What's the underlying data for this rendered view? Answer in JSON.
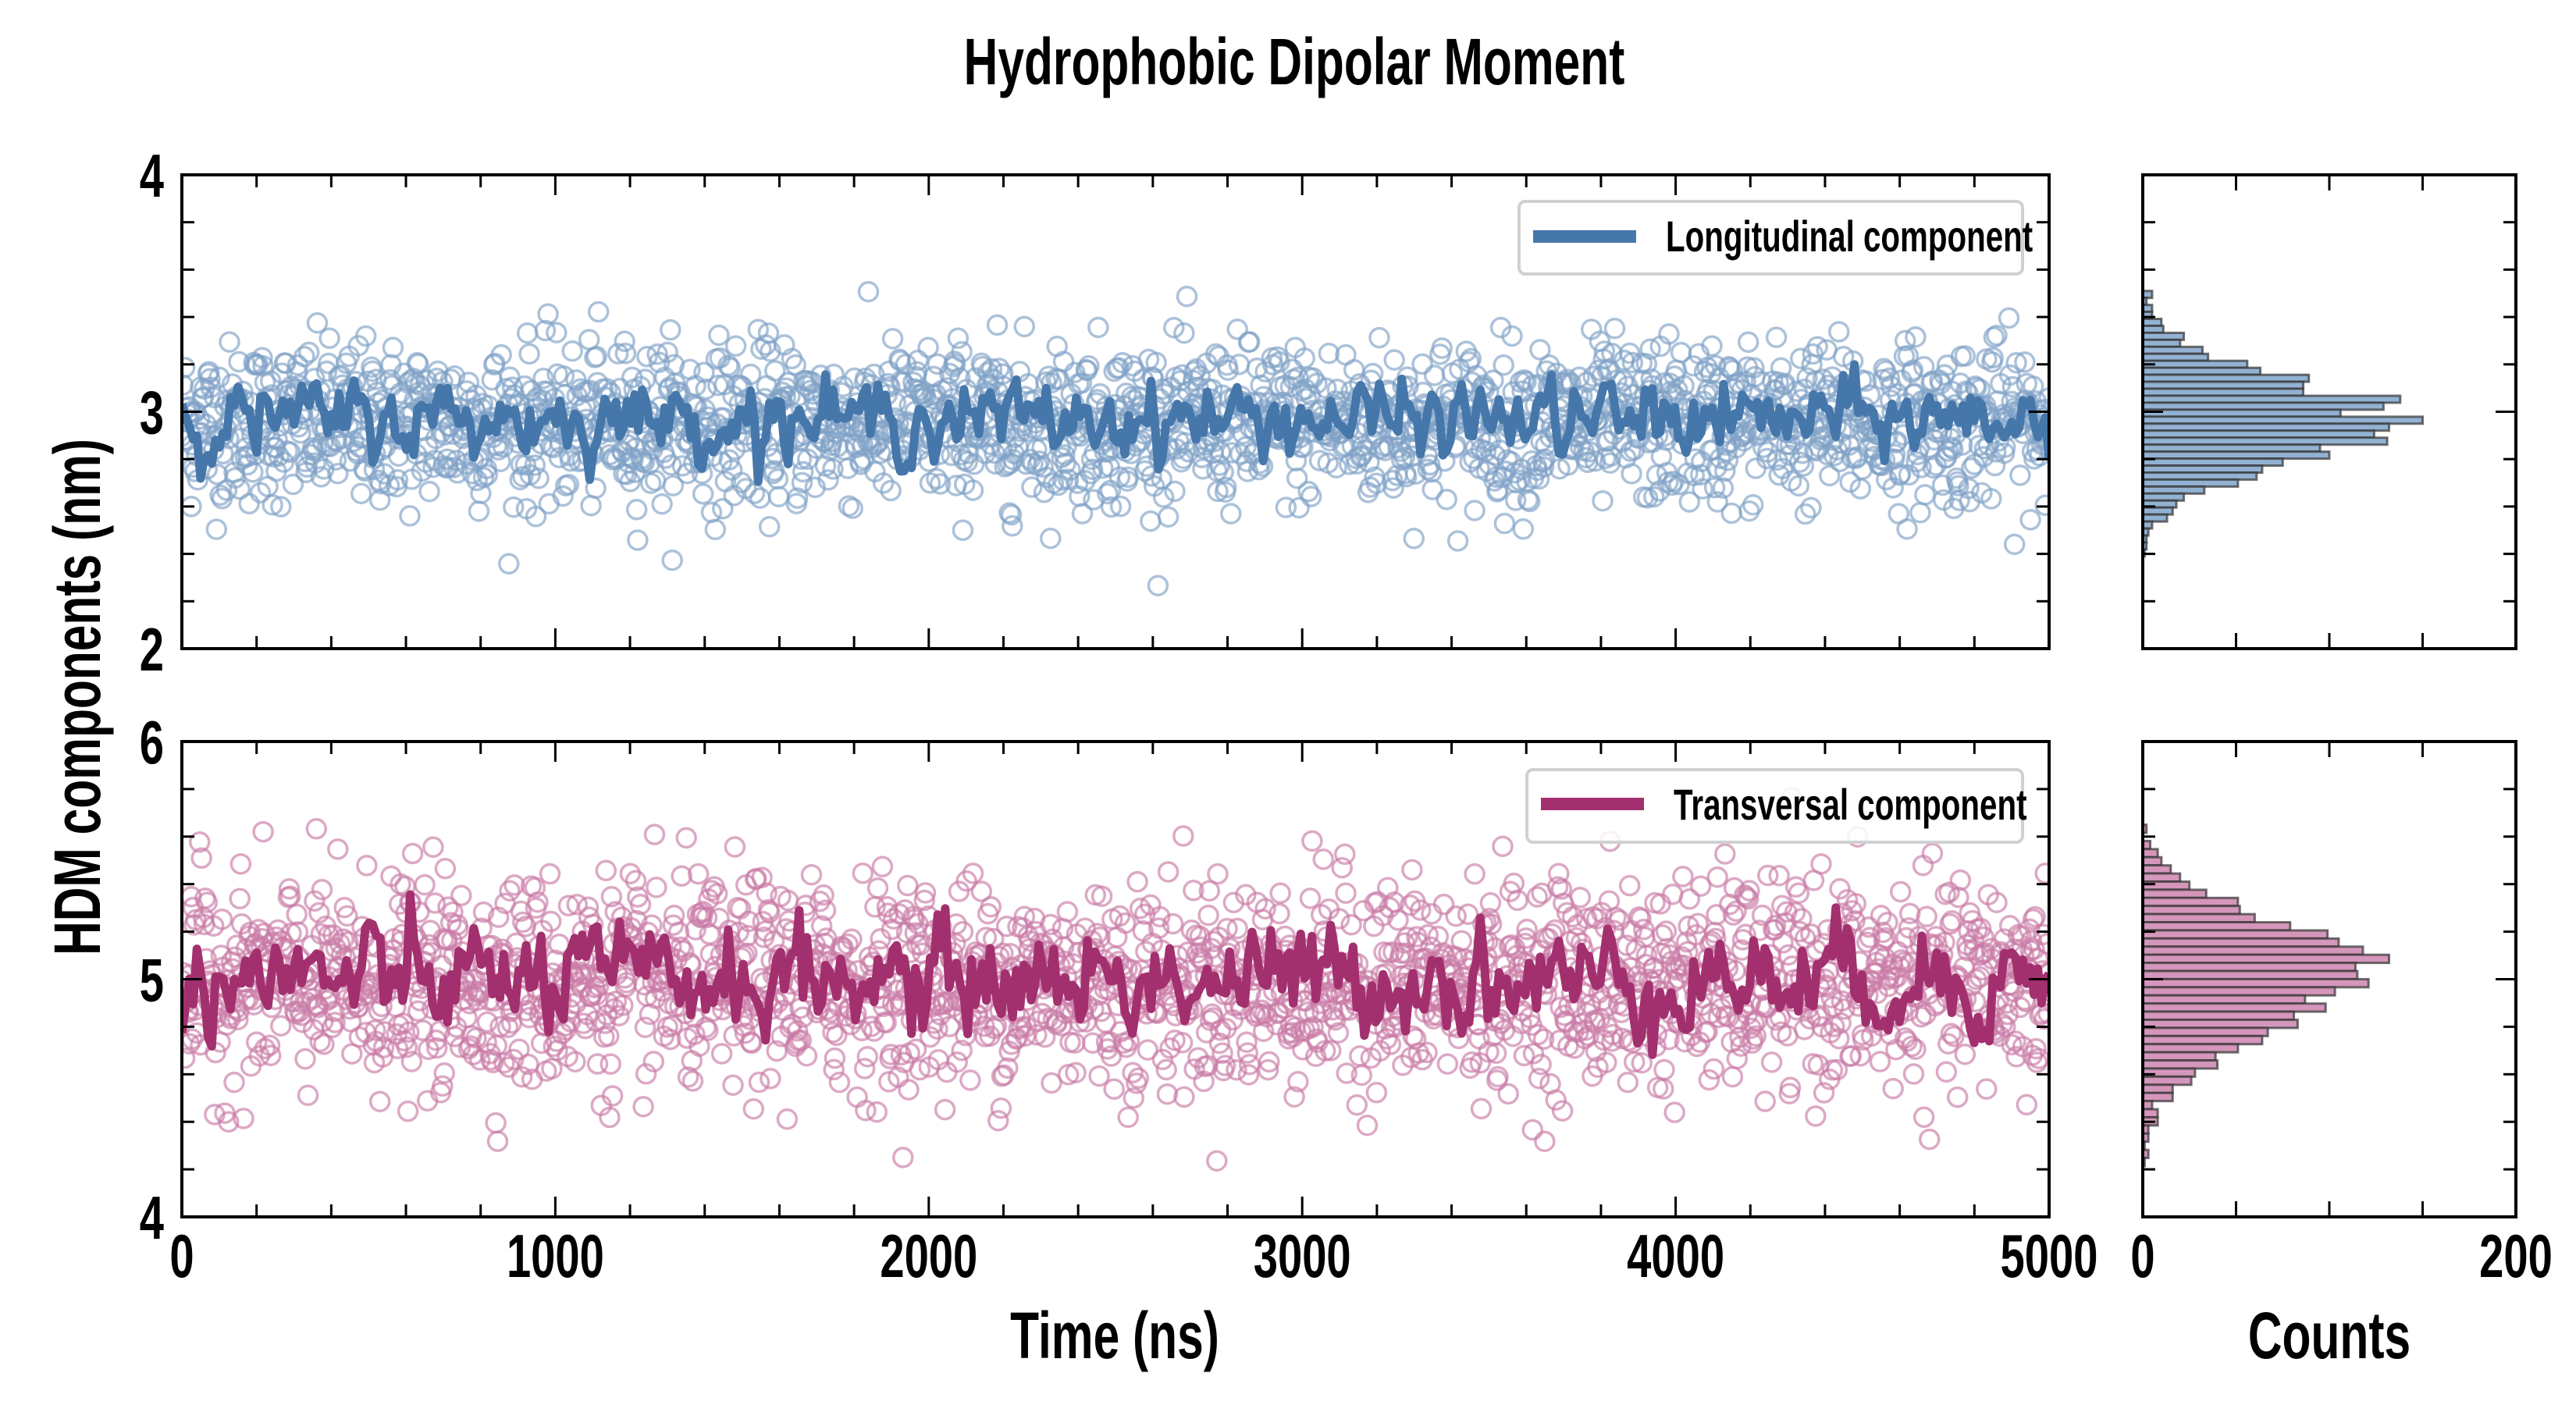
{
  "chart_data": {
    "type": "scatter",
    "title": "Hydrophobic Dipolar Moment",
    "ylabel": "HDM components (nm)",
    "xlabel": "Time (ns)",
    "hist_xlabel": "Counts",
    "xlim": [
      0,
      5000
    ],
    "x_ticks": [
      "0",
      "1000",
      "2000",
      "3000",
      "4000",
      "5000"
    ],
    "hist_xlim": [
      0,
      200
    ],
    "hist_x_ticks": [
      "0",
      "200"
    ],
    "panels": [
      {
        "name": "Longitudinal component",
        "color": "#4677aa",
        "point_color": "#7fa2c6",
        "hist_fill": "#93b2d3",
        "ylim": [
          2,
          4
        ],
        "y_ticks": [
          "4",
          "3",
          "2"
        ],
        "mean": 2.95,
        "std": 0.17,
        "n_points": 2000,
        "smoothed_std": 0.07,
        "hist": {
          "top_edge": 3.51,
          "bin_width": 0.0295,
          "counts_top_to_bottom": [
            5,
            2,
            5,
            5,
            10,
            11,
            22,
            20,
            32,
            35,
            56,
            63,
            89,
            86,
            86,
            138,
            129,
            106,
            150,
            132,
            124,
            131,
            95,
            100,
            75,
            64,
            61,
            51,
            33,
            22,
            18,
            16,
            13,
            5,
            3,
            2,
            2,
            1
          ]
        }
      },
      {
        "name": "Transversal component",
        "color": "#a3306e",
        "point_color": "#c97ba6",
        "hist_fill": "#d596bb",
        "ylim": [
          4,
          6
        ],
        "y_ticks": [
          "6",
          "5",
          "4"
        ],
        "mean": 4.98,
        "std": 0.22,
        "n_points": 2000,
        "smoothed_std": 0.1,
        "hist": {
          "top_edge": 5.65,
          "bin_width": 0.0342,
          "counts_top_to_bottom": [
            2,
            0,
            4,
            8,
            10,
            15,
            20,
            25,
            34,
            51,
            52,
            60,
            79,
            99,
            105,
            118,
            132,
            114,
            115,
            121,
            103,
            87,
            98,
            81,
            83,
            67,
            64,
            51,
            39,
            40,
            28,
            26,
            16,
            16,
            5,
            8,
            8,
            3,
            3,
            1,
            3,
            1
          ]
        }
      }
    ]
  }
}
